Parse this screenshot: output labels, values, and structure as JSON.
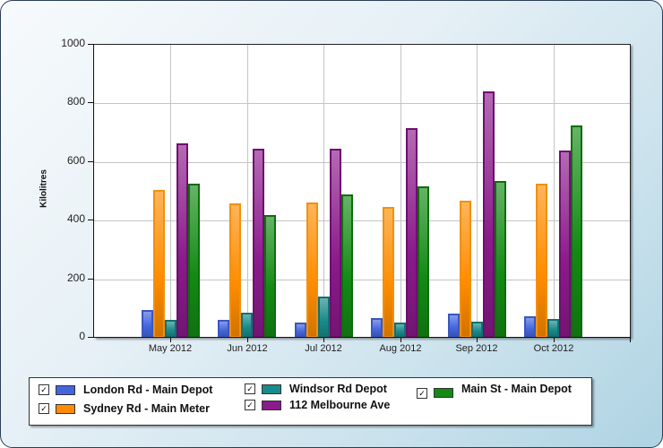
{
  "chart_data": {
    "type": "bar",
    "title": "",
    "xlabel": "",
    "ylabel": "Kilolitres",
    "ylim": [
      0,
      1000
    ],
    "yticks": [
      0,
      200,
      400,
      600,
      800,
      1000
    ],
    "grid": true,
    "legend_position": "bottom",
    "categories": [
      "May 2012",
      "Jun 2012",
      "Jul 2012",
      "Aug 2012",
      "Sep 2012",
      "Oct 2012"
    ],
    "series": [
      {
        "name": "London Rd - Main Depot",
        "color": "#4466dd",
        "border": "#3a56c0",
        "values": [
          95,
          61,
          52,
          67,
          83,
          73
        ]
      },
      {
        "name": "Sydney Rd - Main Meter",
        "color": "#ff8c00",
        "border": "#f09010",
        "values": [
          505,
          459,
          462,
          447,
          468,
          527
        ]
      },
      {
        "name": "Windsor Rd Depot",
        "color": "#1a8a8a",
        "border": "#137070",
        "values": [
          61,
          86,
          141,
          52,
          55,
          64
        ]
      },
      {
        "name": "112 Melbourne Ave",
        "color": "#8b1a8b",
        "border": "#6e0f6e",
        "values": [
          664,
          645,
          645,
          716,
          841,
          640
        ]
      },
      {
        "name": "Main St - Main Depot",
        "color": "#138a13",
        "border": "#0d6e0d",
        "values": [
          526,
          419,
          489,
          517,
          535,
          725
        ]
      }
    ]
  },
  "axis": {
    "y_title": "Kilolitres",
    "y_labels": [
      "0",
      "200",
      "400",
      "600",
      "800",
      "1000"
    ],
    "x_labels": [
      "May 2012",
      "Jun 2012",
      "Jul 2012",
      "Aug 2012",
      "Sep 2012",
      "Oct 2012"
    ]
  },
  "legend": {
    "items": [
      {
        "label": "London Rd - Main Depot",
        "checked": true,
        "check_glyph": "✓"
      },
      {
        "label": "Sydney Rd - Main Meter",
        "checked": true,
        "check_glyph": "✓"
      },
      {
        "label": "Windsor Rd Depot",
        "checked": true,
        "check_glyph": "✓"
      },
      {
        "label": "112 Melbourne Ave",
        "checked": true,
        "check_glyph": "✓"
      },
      {
        "label": "Main St - Main Depot",
        "checked": true,
        "check_glyph": "✓"
      }
    ]
  }
}
